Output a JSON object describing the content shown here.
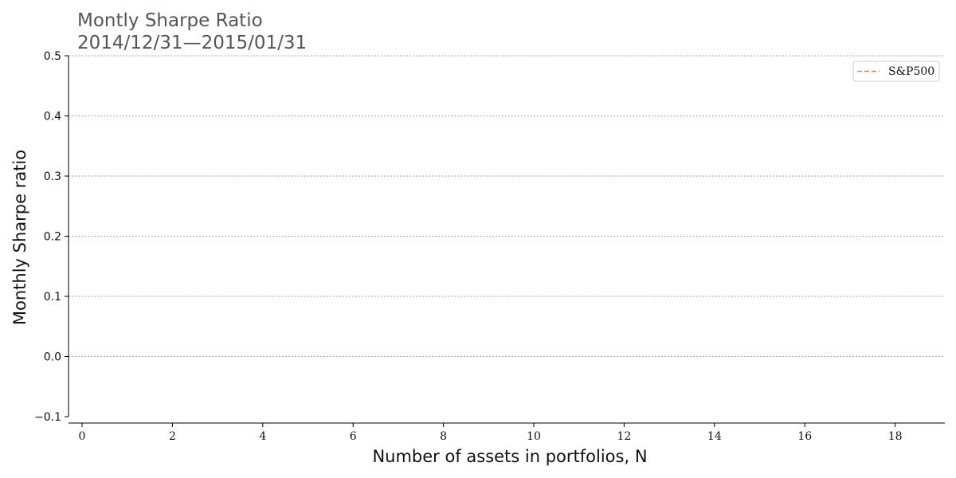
{
  "chart_data": {
    "type": "line",
    "title": "Montly Sharpe Ratio",
    "subtitle": "2014/12/31—2015/01/31",
    "xlabel": "Number of assets in portfolios, N",
    "ylabel": "Monthly Sharpe ratio",
    "xlim": [
      -0.3,
      19.1
    ],
    "ylim": [
      -0.1,
      0.5
    ],
    "xticks": [
      "0",
      "2",
      "4",
      "6",
      "8",
      "10",
      "12",
      "14",
      "16",
      "18"
    ],
    "yticks": [
      "−0.1",
      "0.0",
      "0.1",
      "0.2",
      "0.3",
      "0.4",
      "0.5"
    ],
    "grid": "horizontal, dotted",
    "legend_position": "top-right",
    "series": [
      {
        "name": "S&P500",
        "style": "dashed",
        "color": "#ff7f0e",
        "x": [],
        "y": []
      }
    ]
  }
}
